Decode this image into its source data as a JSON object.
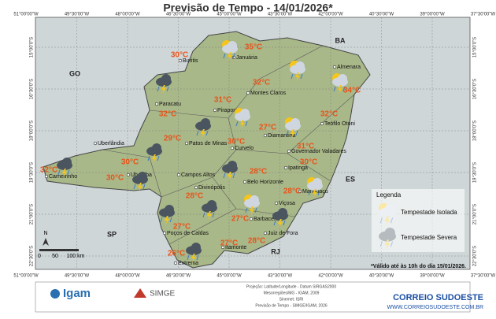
{
  "title": "Previsão de Tempo - 14/01/2026*",
  "longitudes": [
    "51°00'00\"W",
    "49°30'00\"W",
    "48°00'00\"W",
    "46°30'00\"W",
    "45°00'00\"W",
    "43°30'00\"W",
    "42°00'00\"W",
    "40°30'00\"W",
    "39°00'00\"W",
    "37°30'00\"W"
  ],
  "latitudes": [
    "15°00'0\"S",
    "16°30'0\"S",
    "18°00'0\"S",
    "19°30'0\"S",
    "21°00'0\"S",
    "22°30'0\"S"
  ],
  "states": [
    "BA",
    "GO",
    "ES",
    "SP",
    "RJ"
  ],
  "cities": [
    "Buritis",
    "Januária",
    "Montes Claros",
    "Paracatu",
    "Pirapora",
    "Almenara",
    "Teófilo Otoni",
    "Diamantina",
    "Patos de Minas",
    "Uberlândia",
    "Curvelo",
    "Governador Valadares",
    "Ipatinga",
    "Uberaba",
    "Campos Altos",
    "Belo Horizonte",
    "Manhuaçu",
    "Divinópolis",
    "Carneirinho",
    "Viçosa",
    "Barbacena",
    "Juiz de Fora",
    "Poços de Caldas",
    "Itamonte",
    "Extrema"
  ],
  "temperatures": [
    "35°C",
    "30°C",
    "32°C",
    "34°C",
    "31°C",
    "32°C",
    "32°C",
    "27°C",
    "29°C",
    "30°C",
    "31°C",
    "30°C",
    "32°C",
    "30°C",
    "28°C",
    "30°C",
    "28°C",
    "28°C",
    "27°C",
    "27°C",
    "27°C",
    "28°C",
    "26°C"
  ],
  "legend": {
    "title": "Legenda",
    "items": [
      "Tempestade Isolada",
      "Tempestade Severa"
    ]
  },
  "note": "*Válido até às 10h do dia 15/01/2026.",
  "scale": {
    "north": "N",
    "ticks": [
      "0",
      "50",
      "100 km"
    ]
  },
  "footer": {
    "igam": "Igam",
    "simge": "SIMGE",
    "credits": [
      "Projeção: Latitude/Longitude - Datum SIRGAS2000",
      "Mesorregiões/MG - IGAM, 2009",
      "Sinemet: ISRI",
      "Previsão de Tempo - SIMGE/IGAM, 2026"
    ],
    "brand": "CORREIO SUDOESTE",
    "site": "WWW.CORREIOSUDOESTE.COM.BR"
  }
}
